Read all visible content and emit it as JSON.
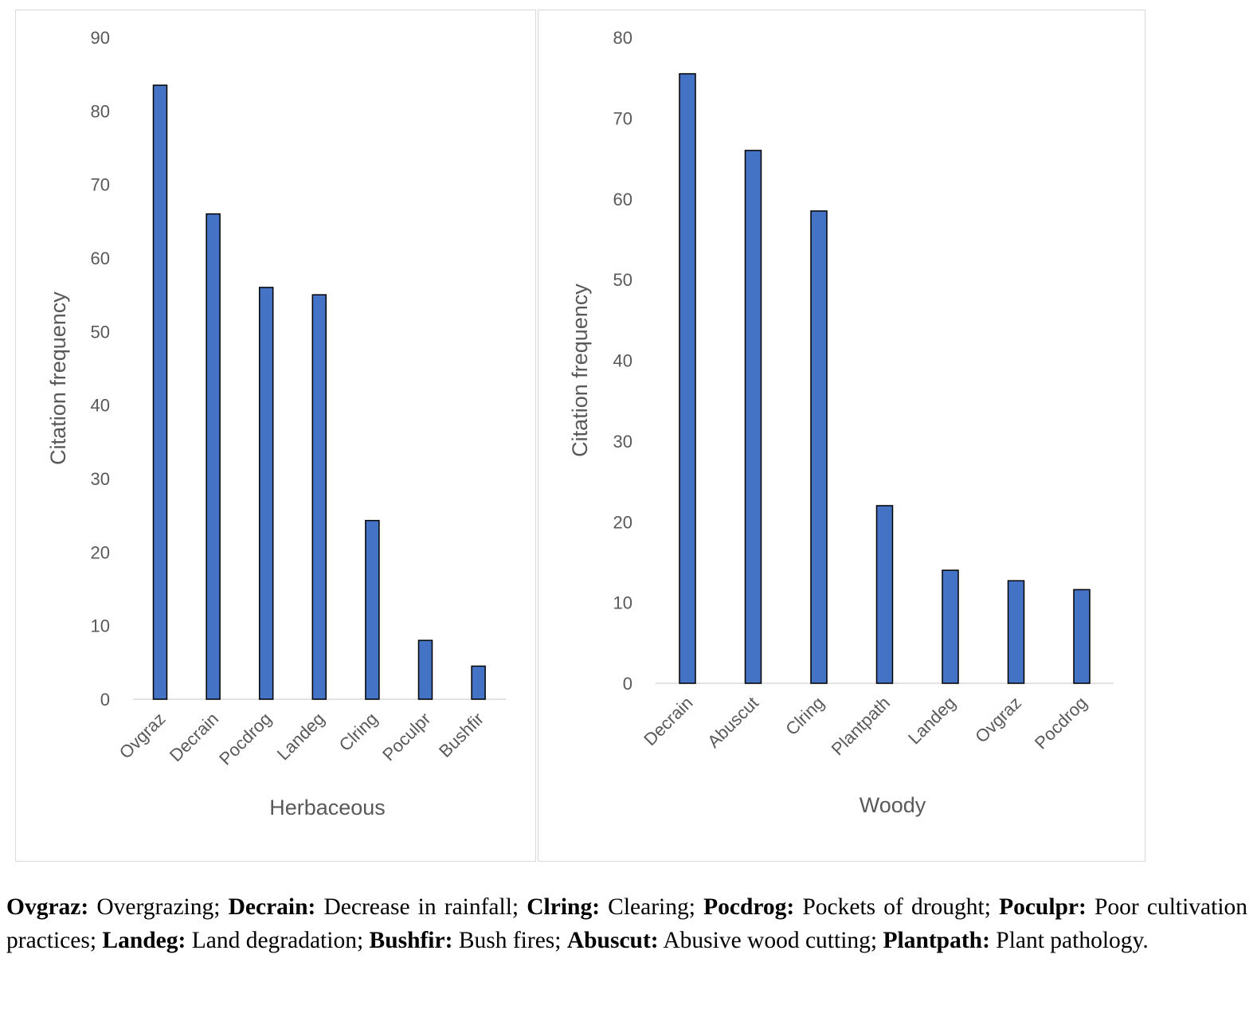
{
  "charts_meta": {
    "bar_color": "#4472C4",
    "bar_stroke": "#000000",
    "gridline_color": "#d9d9d9",
    "text_color": "#595959"
  },
  "chart_data": [
    {
      "type": "bar",
      "categories": [
        "Ovgraz",
        "Decrain",
        "Pocdrog",
        "Landeg",
        "Clring",
        "Poculpr",
        "Bushfir"
      ],
      "values": [
        83.5,
        66,
        56,
        55,
        24.3,
        8,
        4.5
      ],
      "xlabel": "Herbaceous",
      "ylabel": "Citation frequency",
      "ylim": [
        0,
        90
      ],
      "yticks": [
        0,
        10,
        20,
        30,
        40,
        50,
        60,
        70,
        80,
        90
      ],
      "grid": false
    },
    {
      "type": "bar",
      "categories": [
        "Decrain",
        "Abuscut",
        "Clring",
        "Plantpath",
        "Landeg",
        "Ovgraz",
        "Pocdrog"
      ],
      "values": [
        75.5,
        66,
        58.5,
        22,
        14,
        12.7,
        11.6
      ],
      "xlabel": "Woody",
      "ylabel": "Citation frequency",
      "ylim": [
        0,
        80
      ],
      "yticks": [
        0,
        10,
        20,
        30,
        40,
        50,
        60,
        70,
        80
      ],
      "grid": false
    }
  ],
  "caption": [
    {
      "abbr": "Ovgraz:",
      "text": " Overgrazing; "
    },
    {
      "abbr": "Decrain:",
      "text": " Decrease in rainfall; "
    },
    {
      "abbr": "Clring:",
      "text": " Clearing; "
    },
    {
      "abbr": "Pocdrog:",
      "text": " Pockets of drought; "
    },
    {
      "abbr": "Poculpr:",
      "text": " Poor cultivation practices; "
    },
    {
      "abbr": "Landeg:",
      "text": " Land degradation; "
    },
    {
      "abbr": "Bushfir:",
      "text": " Bush fires; "
    },
    {
      "abbr": "Abuscut:",
      "text": " Abusive wood cutting; "
    },
    {
      "abbr": "Plantpath:",
      "text": " Plant pathology."
    }
  ]
}
